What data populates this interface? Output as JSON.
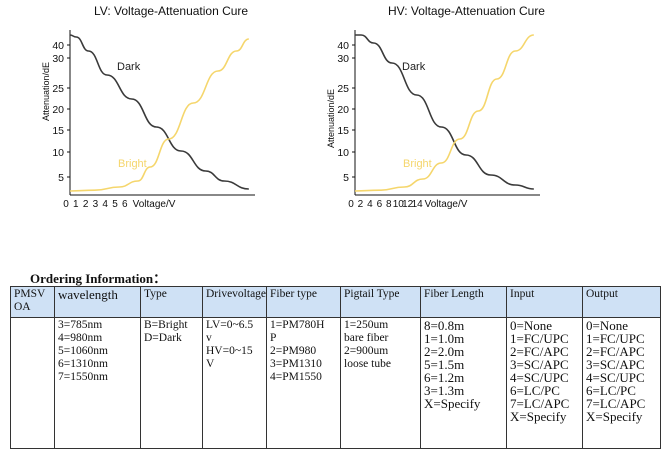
{
  "charts": {
    "lv": {
      "title": "LV: Voltage-Attenuation Cure",
      "ylabel": "Attenuation/dE",
      "xlabel": "Voltage/V",
      "xticks": [
        "0",
        "1",
        "2",
        "3",
        "4",
        "5",
        "6"
      ],
      "yticks": [
        "40",
        "30",
        "25",
        "20",
        "15",
        "10",
        "5"
      ],
      "dark_label": "Dark",
      "bright_label": "Bright"
    },
    "hv": {
      "title": "HV: Voltage-Attenuation Cure",
      "ylabel": "Attenuation/dE",
      "xlabel": "Voltage/V",
      "xticks": [
        "0",
        "2",
        "4",
        "6",
        "8",
        "10",
        "12",
        "14"
      ],
      "yticks": [
        "40",
        "30",
        "25",
        "20",
        "15",
        "10",
        "5"
      ],
      "dark_label": "Dark",
      "bright_label": "Bright"
    }
  },
  "chart_data": [
    {
      "type": "line",
      "title": "LV: Voltage-Attenuation Cure",
      "xlabel": "Voltage/V",
      "ylabel": "Attenuation/dE",
      "xlim": [
        0,
        15
      ],
      "ylim": [
        0,
        40
      ],
      "series": [
        {
          "name": "Dark",
          "color": "#3a3a3a",
          "x": [
            0,
            0.5,
            1.5,
            3,
            5,
            7,
            9,
            11,
            12.5,
            14.5
          ],
          "y": [
            40,
            39.5,
            36,
            30,
            24,
            17,
            11,
            6,
            3.5,
            1.5
          ]
        },
        {
          "name": "Bright",
          "color": "#f5d66c",
          "x": [
            0,
            2,
            4,
            5.5,
            6.5,
            8,
            10,
            12,
            13.5,
            14.5
          ],
          "y": [
            1,
            1.2,
            2,
            3.5,
            7,
            14,
            23,
            31,
            36,
            39
          ]
        }
      ]
    },
    {
      "type": "line",
      "title": "HV: Voltage-Attenuation Cure",
      "xlabel": "Voltage/V",
      "ylabel": "Attenuation/dE",
      "xlim": [
        0,
        30
      ],
      "ylim": [
        0,
        40
      ],
      "series": [
        {
          "name": "Dark",
          "color": "#3a3a3a",
          "x": [
            0,
            1,
            3,
            6,
            10,
            14,
            18,
            22,
            26,
            29
          ],
          "y": [
            40,
            40,
            38,
            33,
            25,
            17,
            10,
            5,
            2.5,
            1.5
          ]
        },
        {
          "name": "Bright",
          "color": "#f5d66c",
          "x": [
            0,
            4,
            8,
            11,
            14,
            17,
            20,
            23,
            26,
            29
          ],
          "y": [
            1,
            1.2,
            2,
            4,
            8,
            14,
            21,
            29,
            36,
            40
          ]
        }
      ]
    }
  ],
  "ordering": {
    "title": "Ordering Information：",
    "headers": [
      "PMSV OA",
      "wavelength",
      "Type",
      "Drivevoltage",
      "Fiber type",
      "Pigtail Type",
      "Fiber Length",
      "Input",
      "Output"
    ],
    "wavelength": [
      "3=785nm",
      "4=980nm",
      "5=1060nm",
      "6=1310nm",
      "7=1550nm"
    ],
    "type": [
      "B=Bright",
      "D=Dark"
    ],
    "drive": [
      "LV=0~6.5",
      "v",
      "HV=0~15",
      "V"
    ],
    "fiber": [
      "1=PM780H",
      "P",
      "2=PM980",
      "3=PM1310",
      "4=PM1550"
    ],
    "pigtail": [
      "1=250um",
      "bare fiber",
      "2=900um",
      "loose tube"
    ],
    "length": [
      "8=0.8m",
      "1=1.0m",
      "2=2.0m",
      "5=1.5m",
      "6=1.2m",
      "3=1.3m",
      "X=Specify"
    ],
    "input": [
      "0=None",
      "1=FC/UPC",
      "2=FC/APC",
      "3=SC/APC",
      "4=SC/UPC",
      "6=LC/PC",
      "7=LC/APC",
      "X=Specify"
    ],
    "output": [
      "0=None",
      "1=FC/UPC",
      "2=FC/APC",
      "3=SC/APC",
      "4=SC/UPC",
      "6=LC/PC",
      "7=LC/APC",
      "X=Specify"
    ]
  }
}
